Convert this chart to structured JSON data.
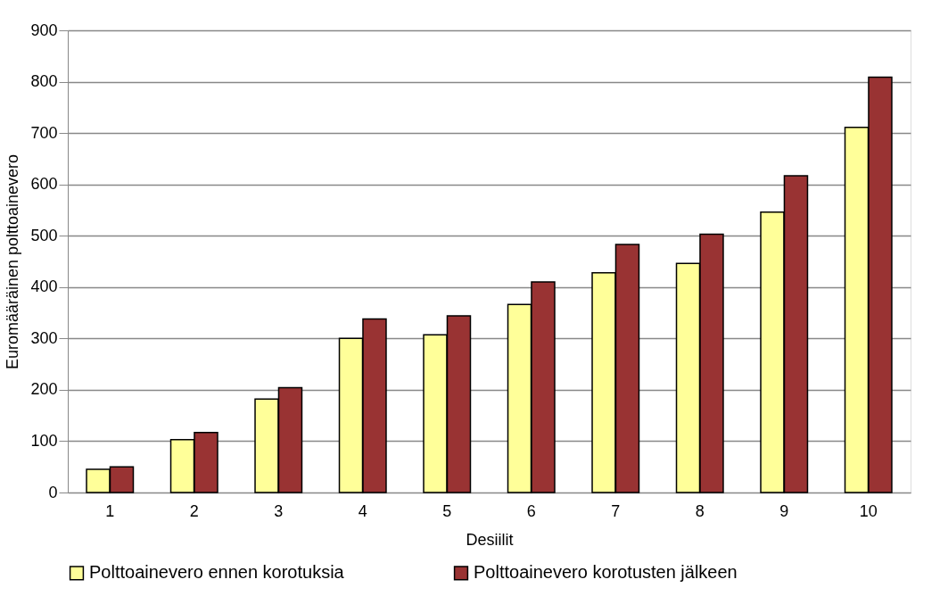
{
  "chart_data": {
    "type": "bar",
    "xlabel": "Desiilit",
    "ylabel": "Euromääräinen polttoainevero",
    "categories": [
      "1",
      "2",
      "3",
      "4",
      "5",
      "6",
      "7",
      "8",
      "9",
      "10"
    ],
    "series": [
      {
        "name": "Polttoainevero ennen korotuksia",
        "color": "#ffff99",
        "values": [
          45,
          103,
          182,
          300,
          307,
          366,
          428,
          446,
          546,
          711
        ]
      },
      {
        "name": "Polttoainevero korotusten jälkeen",
        "color": "#993333",
        "values": [
          50,
          117,
          204,
          338,
          344,
          410,
          483,
          503,
          617,
          809
        ]
      }
    ],
    "ylim": [
      0,
      900
    ],
    "yticks": [
      0,
      100,
      200,
      300,
      400,
      500,
      600,
      700,
      800,
      900
    ],
    "grid": "y",
    "legend": "bottom"
  }
}
